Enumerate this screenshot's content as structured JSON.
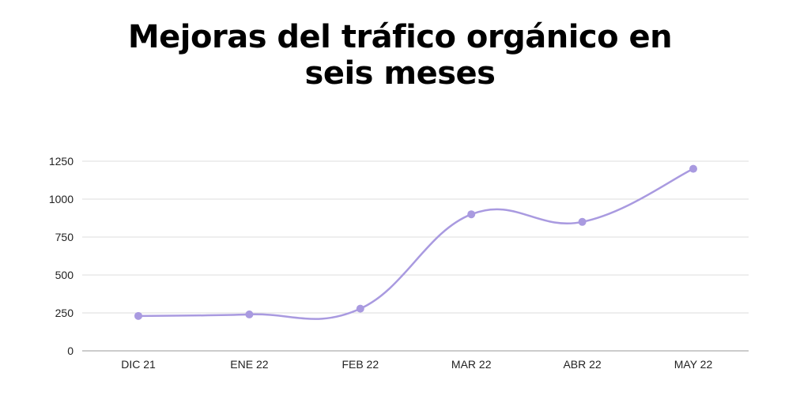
{
  "chart_data": {
    "type": "line",
    "title_lines": [
      "Mejoras del tráfico orgánico en",
      "seis meses"
    ],
    "categories": [
      "DIC 21",
      "ENE 22",
      "FEB 22",
      "MAR 22",
      "ABR 22",
      "MAY 22"
    ],
    "series": [
      {
        "values": [
          230,
          240,
          278,
          900,
          850,
          1200
        ],
        "color": "#a99ae0"
      }
    ],
    "y_ticks": [
      "0",
      "250",
      "500",
      "750",
      "1000",
      "1250"
    ],
    "ylim": [
      0,
      1250
    ],
    "xlabel": "",
    "ylabel": "",
    "grid": true,
    "legend": "none",
    "gridline_color": "#dddddd",
    "axis_color": "#999999"
  }
}
